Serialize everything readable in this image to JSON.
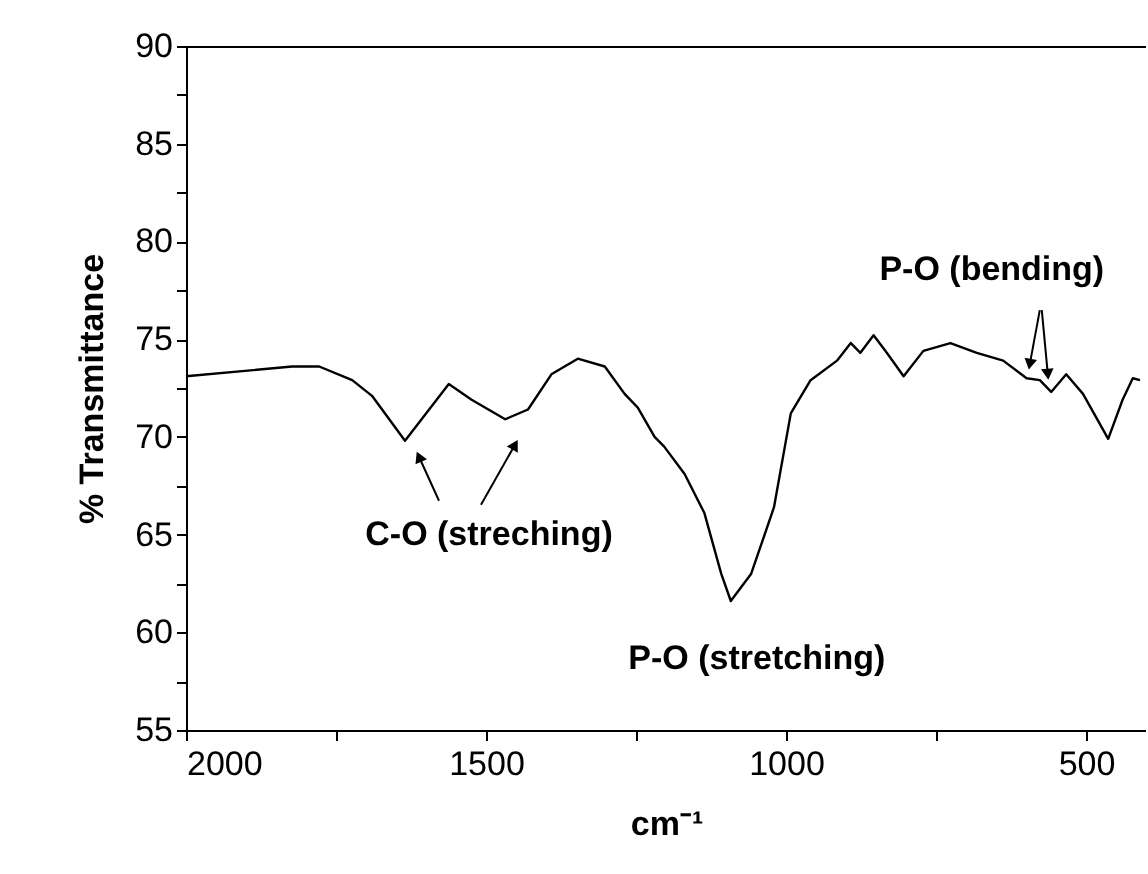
{
  "chart_data": {
    "type": "line",
    "xlabel": "cm⁻¹",
    "ylabel": "% Transmittance",
    "x": [
      2000,
      1823,
      1778,
      1723,
      1690,
      1635,
      1562,
      1524,
      1468,
      1430,
      1391,
      1347,
      1302,
      1269,
      1247,
      1219,
      1203,
      1169,
      1136,
      1108,
      1092,
      1058,
      1020,
      992,
      959,
      915,
      892,
      876,
      854,
      832,
      804,
      771,
      726,
      682,
      638,
      599,
      577,
      558,
      533,
      505,
      463,
      439,
      422,
      410
    ],
    "series": [
      {
        "color": "#000000",
        "values": [
          73.1,
          73.6,
          73.6,
          72.9,
          72.1,
          69.8,
          72.7,
          71.9,
          70.9,
          71.4,
          73.2,
          74.0,
          73.6,
          72.2,
          71.5,
          70.0,
          69.5,
          68.1,
          66.1,
          63.0,
          61.6,
          63.0,
          66.4,
          71.2,
          72.9,
          73.9,
          74.8,
          74.3,
          75.2,
          74.3,
          73.1,
          74.4,
          74.8,
          74.3,
          73.9,
          73.0,
          72.9,
          72.3,
          73.2,
          72.2,
          69.9,
          71.9,
          73.0,
          72.9
        ]
      }
    ],
    "xlim": [
      2000,
      400
    ],
    "ylim": [
      55,
      90
    ],
    "xticks": [
      2000,
      {
        "value": 1750,
        "label": null
      },
      1500,
      {
        "value": 1250,
        "label": null
      },
      1000,
      {
        "value": 750,
        "label": null
      },
      500
    ],
    "yticks": [
      55,
      {
        "value": 57.5,
        "label": null
      },
      60,
      {
        "value": 62.5,
        "label": null
      },
      65,
      {
        "value": 67.5,
        "label": null
      },
      70,
      {
        "value": 72.5,
        "label": null
      },
      75,
      {
        "value": 77.5,
        "label": null
      },
      80,
      {
        "value": 82.5,
        "label": null
      },
      85,
      {
        "value": 87.5,
        "label": null
      },
      90
    ],
    "annotations": [
      {
        "text": "C-O (streching)",
        "x": 1635,
        "y": 69.8
      },
      {
        "text": "P-O (stretching)",
        "x": 1092,
        "y": 61.6
      },
      {
        "text": "P-O (bending)",
        "x": 577,
        "y": 72.9
      }
    ],
    "grid": false,
    "marker": "none",
    "line_style": "solid"
  }
}
